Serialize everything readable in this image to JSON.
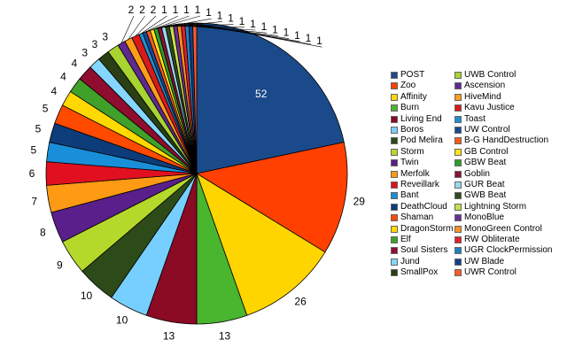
{
  "chart_data": {
    "type": "pie",
    "title": "",
    "start": "top",
    "direction": "clockwise",
    "legend_position": "right",
    "series": [
      {
        "name": "POST",
        "value": 52,
        "color": "#1a4a8a"
      },
      {
        "name": "Zoo",
        "value": 29,
        "color": "#ff4000"
      },
      {
        "name": "Affinity",
        "value": 26,
        "color": "#ffd500"
      },
      {
        "name": "Burn",
        "value": 13,
        "color": "#4ab52e"
      },
      {
        "name": "Living End",
        "value": 13,
        "color": "#8b0a24"
      },
      {
        "name": "Boros",
        "value": 10,
        "color": "#77cfff"
      },
      {
        "name": "Pod Melira",
        "value": 10,
        "color": "#2d4a19"
      },
      {
        "name": "Storm",
        "value": 9,
        "color": "#b5d92a"
      },
      {
        "name": "Twin",
        "value": 8,
        "color": "#5a1f8a"
      },
      {
        "name": "Merfolk",
        "value": 7,
        "color": "#ff9a14"
      },
      {
        "name": "Reveillark",
        "value": 6,
        "color": "#e01020"
      },
      {
        "name": "Bant",
        "value": 5,
        "color": "#1a8fd9"
      },
      {
        "name": "DeathCloud",
        "value": 5,
        "color": "#0d3c7a"
      },
      {
        "name": "Shaman",
        "value": 5,
        "color": "#ff4a00"
      },
      {
        "name": "DragonStorm",
        "value": 4,
        "color": "#ffd900"
      },
      {
        "name": "Elf",
        "value": 4,
        "color": "#3fa02a"
      },
      {
        "name": "Soul Sisters",
        "value": 4,
        "color": "#8f0d2e"
      },
      {
        "name": "Jund",
        "value": 3,
        "color": "#85d6ff"
      },
      {
        "name": "SmallPox",
        "value": 3,
        "color": "#2a3f14"
      },
      {
        "name": "UWB Control",
        "value": 3,
        "color": "#a8d431"
      },
      {
        "name": "Ascension",
        "value": 2,
        "color": "#5e2a8f"
      },
      {
        "name": "HiveMind",
        "value": 2,
        "color": "#ff9d1a"
      },
      {
        "name": "Kavu Justice",
        "value": 2,
        "color": "#d91a1a"
      },
      {
        "name": "Toast",
        "value": 1,
        "color": "#1f90d1"
      },
      {
        "name": "UW Control",
        "value": 1,
        "color": "#154b94"
      },
      {
        "name": "B-G HandDestruction",
        "value": 1,
        "color": "#ff5a1a"
      },
      {
        "name": "GB Control",
        "value": 1,
        "color": "#ffe01a"
      },
      {
        "name": "GBW Beat",
        "value": 1,
        "color": "#2e9e2e"
      },
      {
        "name": "Goblin",
        "value": 1,
        "color": "#8a1230"
      },
      {
        "name": "GUR Beat",
        "value": 1,
        "color": "#9ed6f2"
      },
      {
        "name": "GWB Beat",
        "value": 1,
        "color": "#2f4a1d"
      },
      {
        "name": "Lightning Storm",
        "value": 1,
        "color": "#c5e04a"
      },
      {
        "name": "MonoBlue",
        "value": 1,
        "color": "#6a2f96"
      },
      {
        "name": "MonoGreen Control",
        "value": 1,
        "color": "#ff8f1f"
      },
      {
        "name": "RW Obliterate",
        "value": 1,
        "color": "#e0202a"
      },
      {
        "name": "UGR ClockPermission",
        "value": 1,
        "color": "#1f7fc4"
      },
      {
        "name": "UW Blade",
        "value": 1,
        "color": "#12408a"
      },
      {
        "name": "UWR Control",
        "value": 1,
        "color": "#ff5a2a"
      }
    ]
  }
}
